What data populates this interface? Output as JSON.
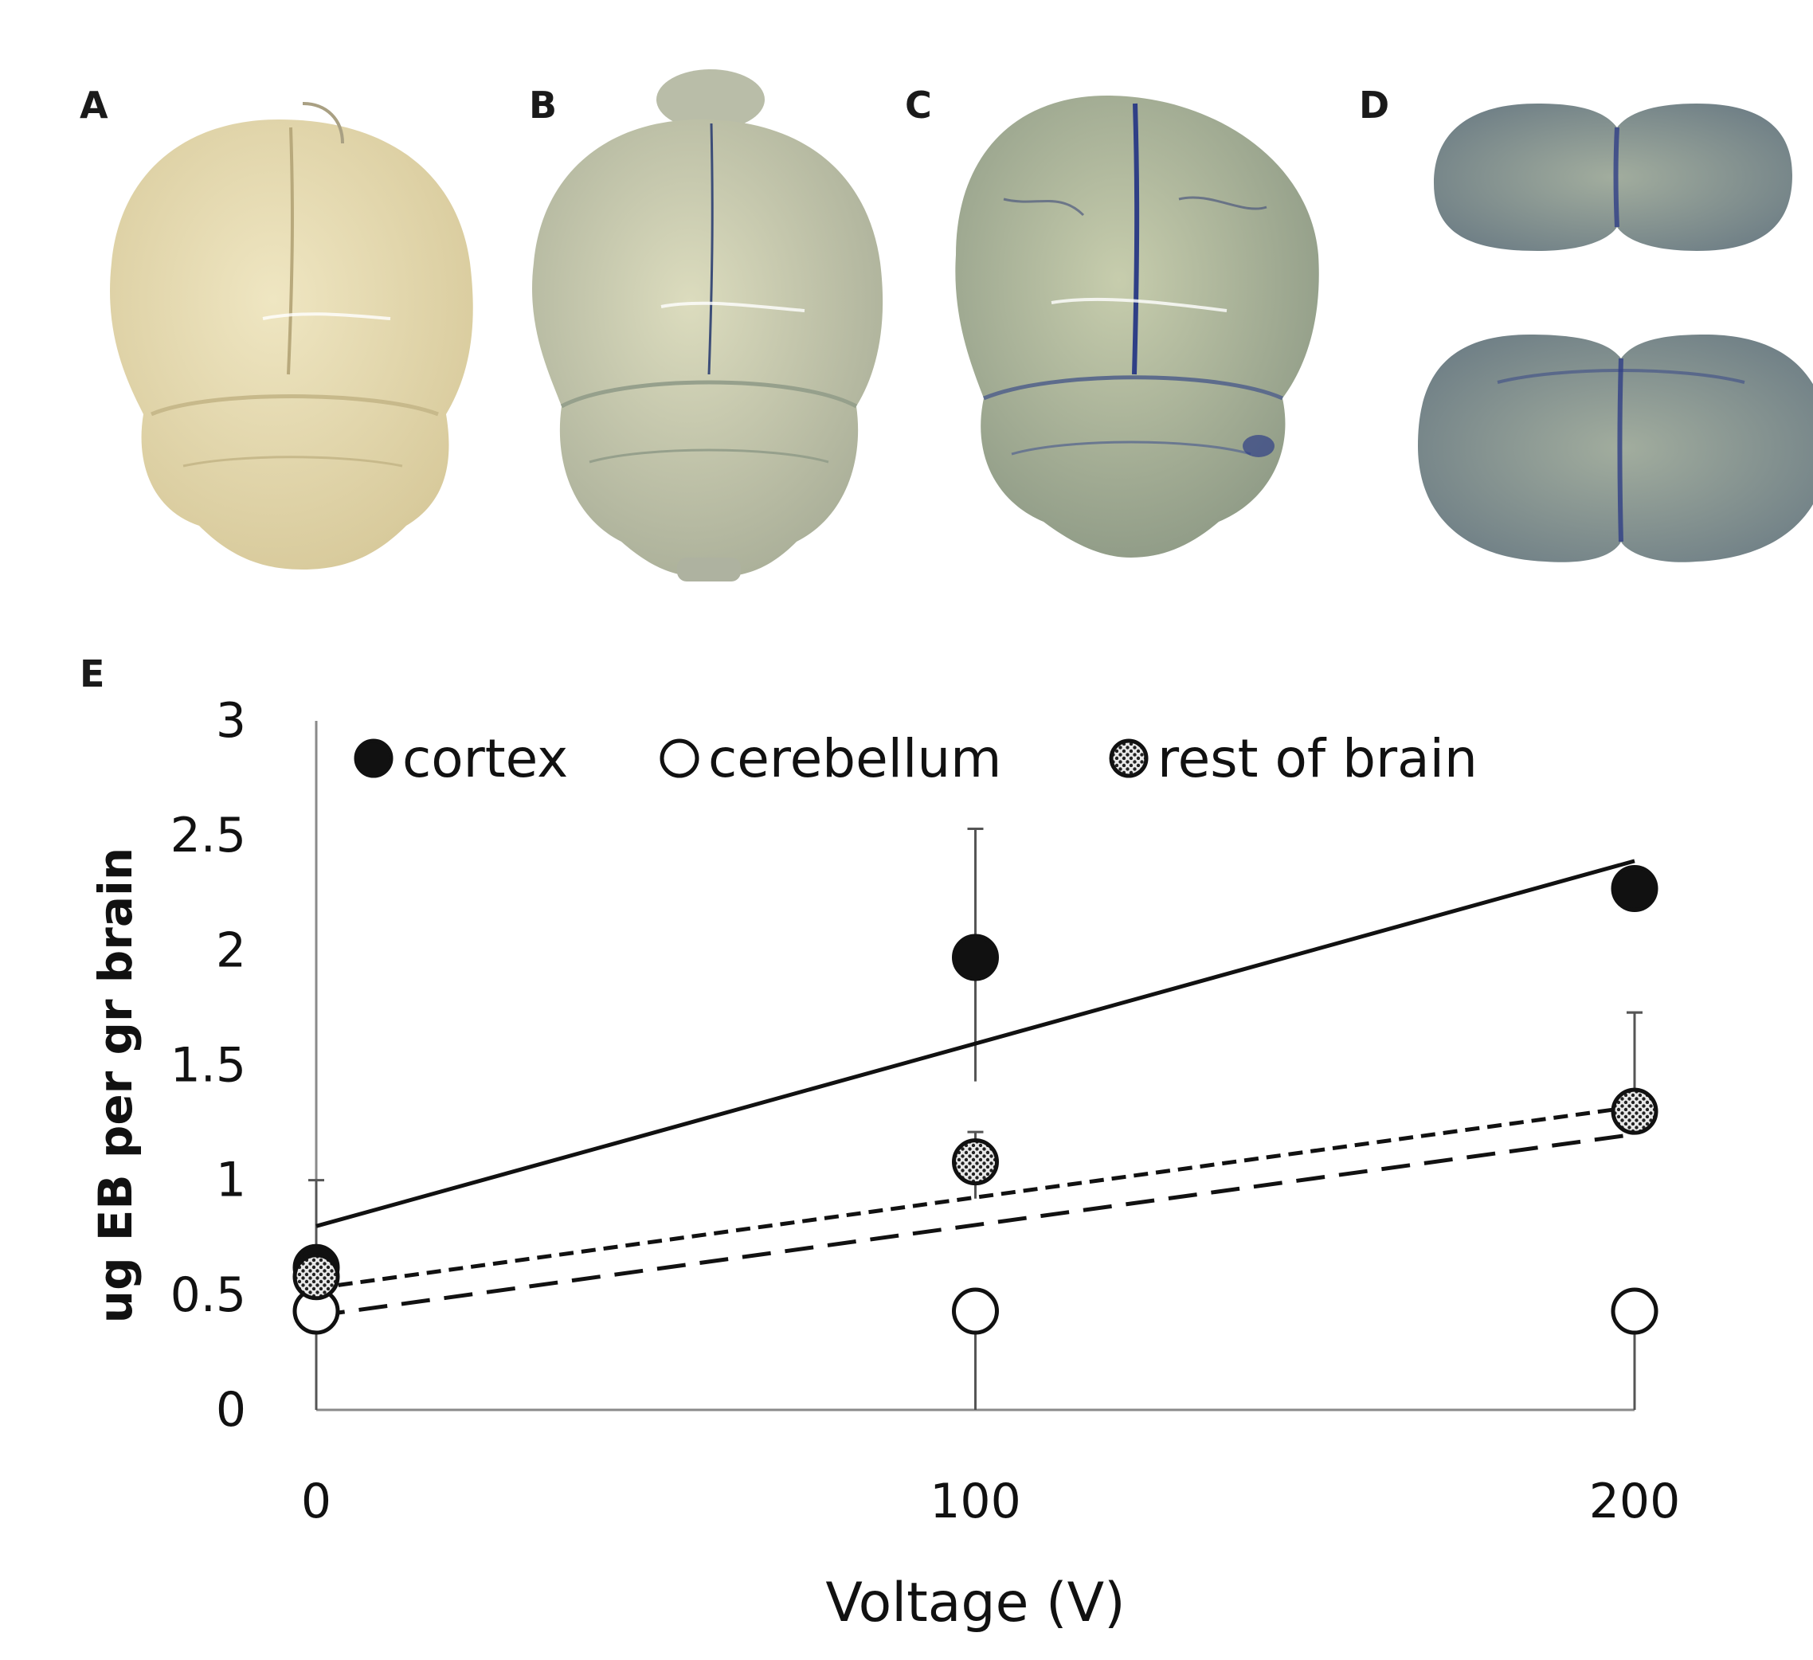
{
  "panels": {
    "a": {
      "letter": "A"
    },
    "b": {
      "letter": "B"
    },
    "c": {
      "letter": "C"
    },
    "d": {
      "letter": "D"
    },
    "e": {
      "letter": "E"
    }
  },
  "colors": {
    "brain_a": "#e6dcb4",
    "brain_b": "#cfd0b2",
    "brain_c": "#b7c0a4",
    "slice": "#8f9e94",
    "dye_blue": "#2f3f86",
    "cortex_fill": "#111111",
    "cerebellum_fill": "#ffffff",
    "rest_fill": "#7a7a7a"
  },
  "chart_data": {
    "type": "scatter",
    "xlabel": "Voltage (V)",
    "ylabel": "ug EB per gr brain",
    "x": [
      0,
      100,
      200
    ],
    "x_ticks": [
      "0",
      "100",
      "200"
    ],
    "y_ticks": [
      "0",
      "0.5",
      "1",
      "1.5",
      "2",
      "2.5",
      "3"
    ],
    "xlim": [
      0,
      200
    ],
    "ylim": [
      0,
      3
    ],
    "legend_position": "top",
    "series": [
      {
        "name": "cortex",
        "marker": "filled",
        "values": [
          0.62,
          1.97,
          2.27
        ],
        "errors": [
          [
            0.62,
            1.0
          ],
          [
            1.43,
            2.53
          ],
          [
            1.4,
            1.73
          ]
        ],
        "trend": {
          "start": 0.8,
          "end": 2.39,
          "style": "solid"
        }
      },
      {
        "name": "cerebellum",
        "marker": "open",
        "values": [
          0.43,
          0.43,
          0.43
        ],
        "errors": [
          [
            0.0,
            0.43
          ],
          [
            0.0,
            0.43
          ],
          [
            0.0,
            0.43
          ]
        ],
        "trend": {
          "start": 0.41,
          "end": 1.2,
          "style": "long-dash"
        }
      },
      {
        "name": "rest of brain",
        "marker": "hatched",
        "values": [
          0.58,
          1.08,
          1.3
        ],
        "errors": [
          [
            0.58,
            0.62
          ],
          [
            0.92,
            1.21
          ],
          [
            1.3,
            1.73
          ]
        ],
        "trend": {
          "start": 0.53,
          "end": 1.32,
          "style": "short-dash"
        }
      }
    ]
  }
}
